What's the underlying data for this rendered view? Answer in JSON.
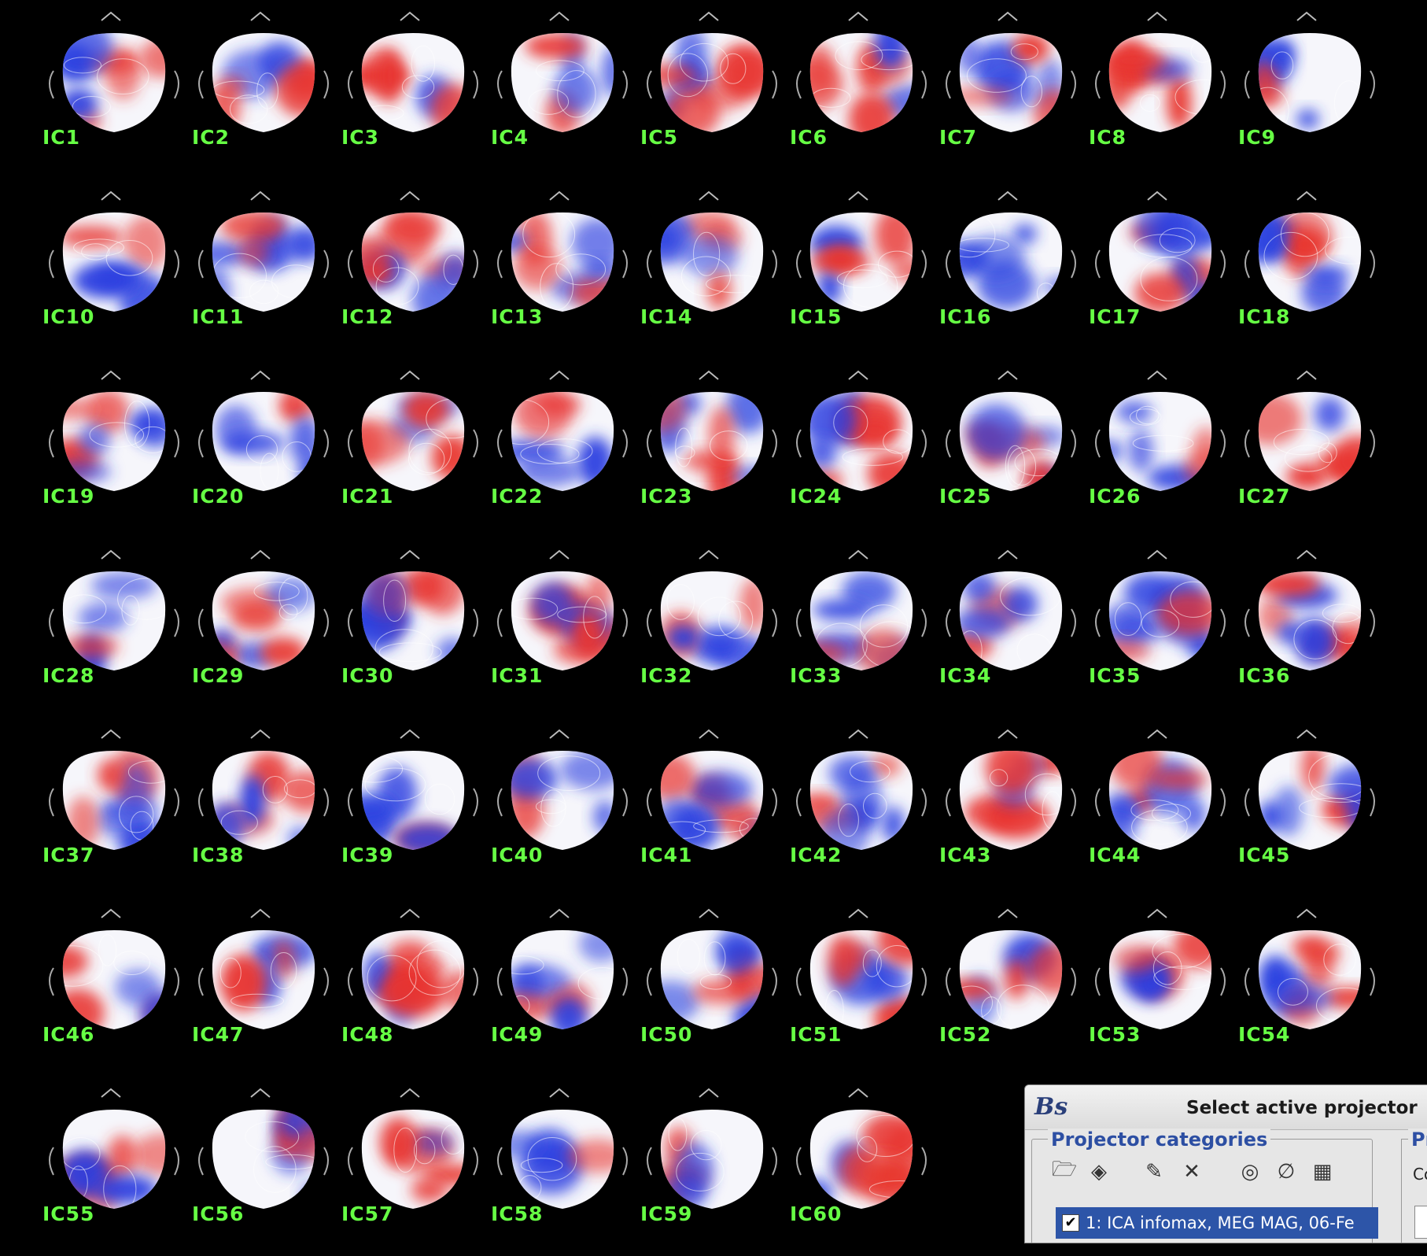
{
  "components": [
    "IC1",
    "IC2",
    "IC3",
    "IC4",
    "IC5",
    "IC6",
    "IC7",
    "IC8",
    "IC9",
    "IC10",
    "IC11",
    "IC12",
    "IC13",
    "IC14",
    "IC15",
    "IC16",
    "IC17",
    "IC18",
    "IC19",
    "IC20",
    "IC21",
    "IC22",
    "IC23",
    "IC24",
    "IC25",
    "IC26",
    "IC27",
    "IC28",
    "IC29",
    "IC30",
    "IC31",
    "IC32",
    "IC33",
    "IC34",
    "IC35",
    "IC36",
    "IC37",
    "IC38",
    "IC39",
    "IC40",
    "IC41",
    "IC42",
    "IC43",
    "IC44",
    "IC45",
    "IC46",
    "IC47",
    "IC48",
    "IC49",
    "IC50",
    "IC51",
    "IC52",
    "IC53",
    "IC54",
    "IC55",
    "IC56",
    "IC57",
    "IC58",
    "IC59",
    "IC60"
  ],
  "colors": {
    "background": "#000000",
    "label": "#66ff44",
    "positive": "#e8332e",
    "negative": "#2a3fe0",
    "head_fill": "#f6f6fb"
  },
  "dialog": {
    "logo": "Bs",
    "title": "Select active projector",
    "categories_title": "Projector categories",
    "toolbar_icons": [
      "folder-open-icon",
      "load-icon",
      "edit-icon",
      "delete-icon",
      "topography-icon",
      "disable-icon",
      "display-icon"
    ],
    "toolbar_glyphs": [
      "🗁",
      "◈",
      "✎",
      "✕",
      "◎",
      "∅",
      "▦"
    ],
    "list_item": "1: ICA infomax, MEG MAG, 06-Fe",
    "list_item_checked": true,
    "right_group_title": "Pr",
    "right_group_small": "Co"
  }
}
